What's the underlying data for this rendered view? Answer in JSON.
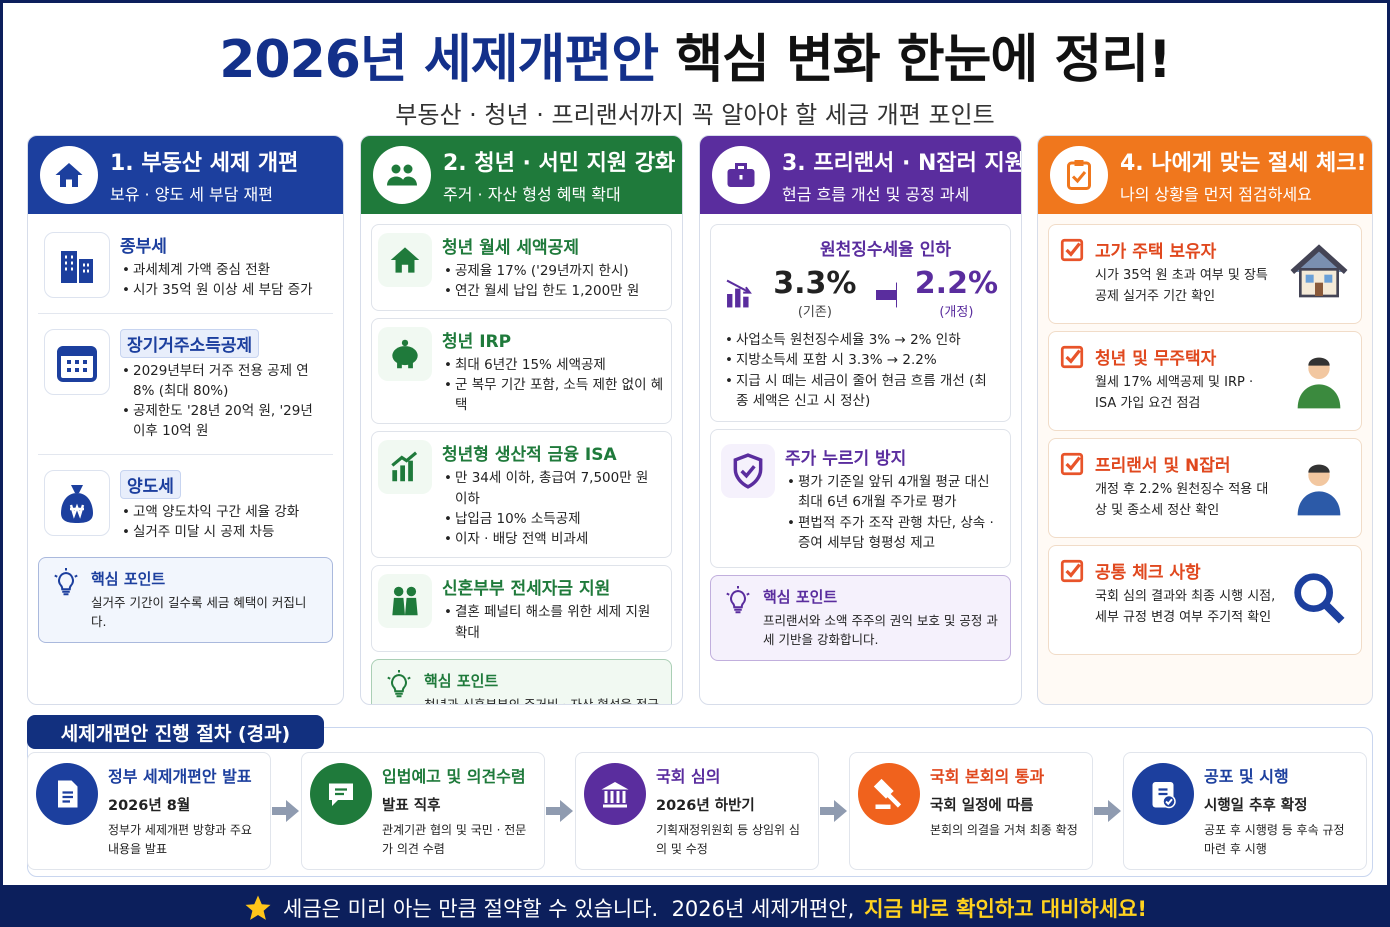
{
  "header": {
    "title_part1": "2026년 세제개편안",
    "title_part2": "핵심 변화 한눈에 정리!",
    "subtitle": "부동산 · 청년 · 프리랜서까지 꼭 알아야 할 세금 개편 포인트"
  },
  "columns": [
    {
      "title": "1. 부동산 세제 개편",
      "subtitle": "보유 · 양도 세 부담 재편",
      "items": [
        {
          "heading": "종부세",
          "bullets": [
            "과세체계 가액 중심 전환",
            "시가 35억 원 이상 세 부담 증가"
          ]
        },
        {
          "heading": "장기거주소득공제",
          "bullets": [
            "2029년부터 거주 전용 공제 연 8% (최대 80%)",
            "공제한도 '28년 20억 원, '29년 이후 10억 원"
          ]
        },
        {
          "heading": "양도세",
          "bullets": [
            "고액 양도차익 구간 세율 강화",
            "실거주 미달 시 공제 차등"
          ]
        }
      ],
      "key_point": {
        "label": "핵심 포인트",
        "text": "실거주 기간이 길수록 세금 혜택이 커집니다."
      }
    },
    {
      "title": "2. 청년 · 서민 지원 강화",
      "subtitle": "주거 · 자산 형성 혜택 확대",
      "items": [
        {
          "heading": "청년 월세 세액공제",
          "bullets": [
            "공제율 17% ('29년까지 한시)",
            "연간 월세 납입 한도 1,200만 원"
          ]
        },
        {
          "heading": "청년 IRP",
          "bullets": [
            "최대 6년간 15% 세액공제",
            "군 복무 기간 포함, 소득 제한 없이 혜택"
          ]
        },
        {
          "heading": "청년형 생산적 금융 ISA",
          "bullets": [
            "만 34세 이하, 총급여 7,500만 원 이하",
            "납입금 10% 소득공제",
            "이자 · 배당 전액 비과세"
          ]
        },
        {
          "heading": "신혼부부 전세자금 지원",
          "bullets": [
            "결혼 페널티 해소를 위한 세제 지원 확대"
          ]
        }
      ],
      "key_point": {
        "label": "핵심 포인트",
        "text": "청년과 신혼부부의 주거비 · 자산 형성을 적극 지원합니다."
      }
    },
    {
      "title": "3. 프리랜서 · N잡러 지원",
      "subtitle": "현금 흐름 개선 및 공정 과세",
      "rate": {
        "heading": "원천징수세율 인하",
        "before": "3.3%",
        "before_label": "(기존)",
        "after": "2.2%",
        "after_label": "(개정)",
        "bullets": [
          "사업소득 원천징수세율 3% → 2% 인하",
          "지방소득세 포함 시 3.3% → 2.2%",
          "지급 시 떼는 세금이 줄어 현금 흐름 개선 (최종 세액은 신고 시 정산)"
        ]
      },
      "items": [
        {
          "heading": "주가 누르기 방지",
          "bullets": [
            "평가 기준일 앞뒤 4개월 평균 대신 최대 6년 6개월 주가로 평가",
            "편법적 주가 조작 관행 차단, 상속 · 증여 세부담 형평성 제고"
          ]
        }
      ],
      "key_point": {
        "label": "핵심 포인트",
        "text": "프리랜서와 소액 주주의 권익 보호 및 공정 과세 기반을 강화합니다."
      }
    },
    {
      "title": "4. 나에게 맞는 절세 체크!",
      "subtitle": "나의 상황을 먼저 점검하세요",
      "checks": [
        {
          "heading": "고가 주택 보유자",
          "text": "시가 35억 원 초과 여부 및 장특공제 실거주 기간 확인"
        },
        {
          "heading": "청년 및 무주택자",
          "text": "월세 17% 세액공제 및 IRP · ISA 가입 요건 점검"
        },
        {
          "heading": "프리랜서 및 N잡러",
          "text": "개정 후 2.2% 원천징수 적용 대상 및 종소세 정산 확인"
        },
        {
          "heading": "공통 체크 사항",
          "text": "국회 심의 결과와 최종 시행 시점, 세부 규정 변경 여부 주기적 확인"
        }
      ]
    }
  ],
  "process": {
    "title": "세제개편안 진행 절차 (경과)",
    "steps": [
      {
        "title": "정부 세제개편안 발표",
        "when": "2026년 8월",
        "desc": "정부가 세제개편 방향과 주요 내용을 발표"
      },
      {
        "title": "입법예고 및 의견수렴",
        "when": "발표 직후",
        "desc": "관계기관 협의 및 국민 · 전문가 의견 수렴"
      },
      {
        "title": "국회 심의",
        "when": "2026년 하반기",
        "desc": "기획재정위원회 등 상임위 심의 및 수정"
      },
      {
        "title": "국회 본회의 통과",
        "when": "국회 일정에 따름",
        "desc": "본회의 의결을 거쳐 최종 확정"
      },
      {
        "title": "공포 및 시행",
        "when": "시행일 추후 확정",
        "desc": "공포 후 시행령 등 후속 규정 마련 후 시행"
      }
    ]
  },
  "footer": {
    "text": "세금은 미리 아는 만큼 절약할 수 있습니다.  2026년 세제개편안,",
    "highlight": "지금 바로 확인하고 대비하세요!"
  }
}
